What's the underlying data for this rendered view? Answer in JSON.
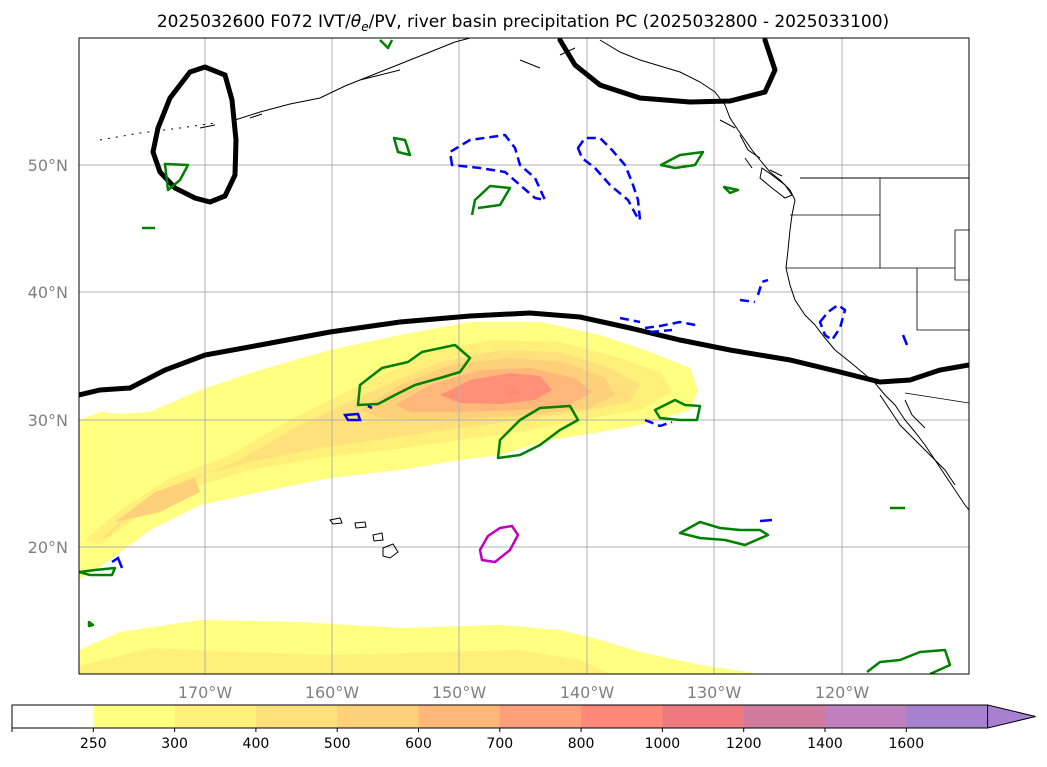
{
  "title": {
    "prefix": "2025032600 F072 IVT/",
    "theta": "θ",
    "theta_sub": "e",
    "suffix": "/PV, river basin precipitation PC (2025032800 - 2025033100)"
  },
  "map": {
    "lat_labels": [
      "50°N",
      "40°N",
      "30°N",
      "20°N"
    ],
    "lon_labels": [
      "170°W",
      "160°W",
      "150°W",
      "140°W",
      "130°W",
      "120°W"
    ]
  },
  "colorbar": {
    "levels": [
      "250",
      "300",
      "400",
      "500",
      "600",
      "700",
      "800",
      "1000",
      "1200",
      "1400",
      "1600"
    ],
    "colors": [
      "#ffffff",
      "#ffff80",
      "#fff07a",
      "#ffe07a",
      "#ffd07a",
      "#ffb87a",
      "#ffa07a",
      "#ff8878",
      "#ee7a80",
      "#d07aa0",
      "#c080c0",
      "#a880d0"
    ],
    "extend": "max"
  },
  "colors": {
    "ivt_fill_low": "#ffff80",
    "ivt_fill_mid": "#ffd07a",
    "ivt_fill_high": "#ff9078",
    "pv_contour": "#000000",
    "positive_pc": "#008000",
    "negative_pc": "#0000ff",
    "magenta_contour": "#c000c0",
    "grid": "#b0b0b0",
    "coast": "#000000"
  }
}
